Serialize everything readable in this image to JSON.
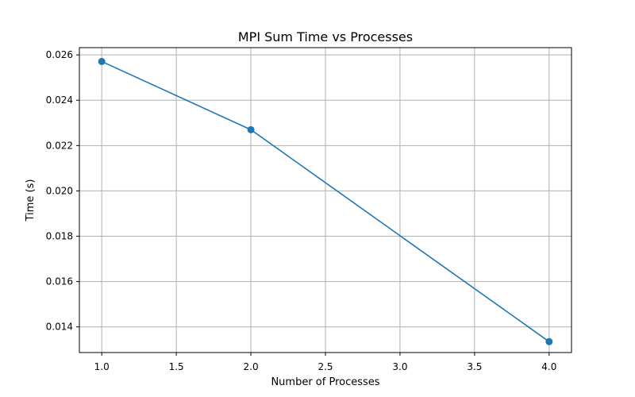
{
  "chart_data": {
    "type": "line",
    "title": "MPI Sum Time vs Processes",
    "xlabel": "Number of Processes",
    "ylabel": "Time (s)",
    "x": [
      1.0,
      2.0,
      4.0
    ],
    "series": [
      {
        "values": [
          0.02571,
          0.0227,
          0.01335
        ]
      }
    ],
    "xlim": [
      0.85,
      4.15
    ],
    "ylim": [
      0.01287,
      0.02632
    ],
    "xticks": [
      1.0,
      1.5,
      2.0,
      2.5,
      3.0,
      3.5,
      4.0
    ],
    "xtick_labels": [
      "1.0",
      "1.5",
      "2.0",
      "2.5",
      "3.0",
      "3.5",
      "4.0"
    ],
    "yticks": [
      0.014,
      0.016,
      0.018,
      0.02,
      0.022,
      0.024,
      0.026
    ],
    "ytick_labels": [
      "0.014",
      "0.016",
      "0.018",
      "0.020",
      "0.022",
      "0.024",
      "0.026"
    ],
    "grid": true,
    "marker": "circle",
    "line_color": "#1f77b4"
  }
}
